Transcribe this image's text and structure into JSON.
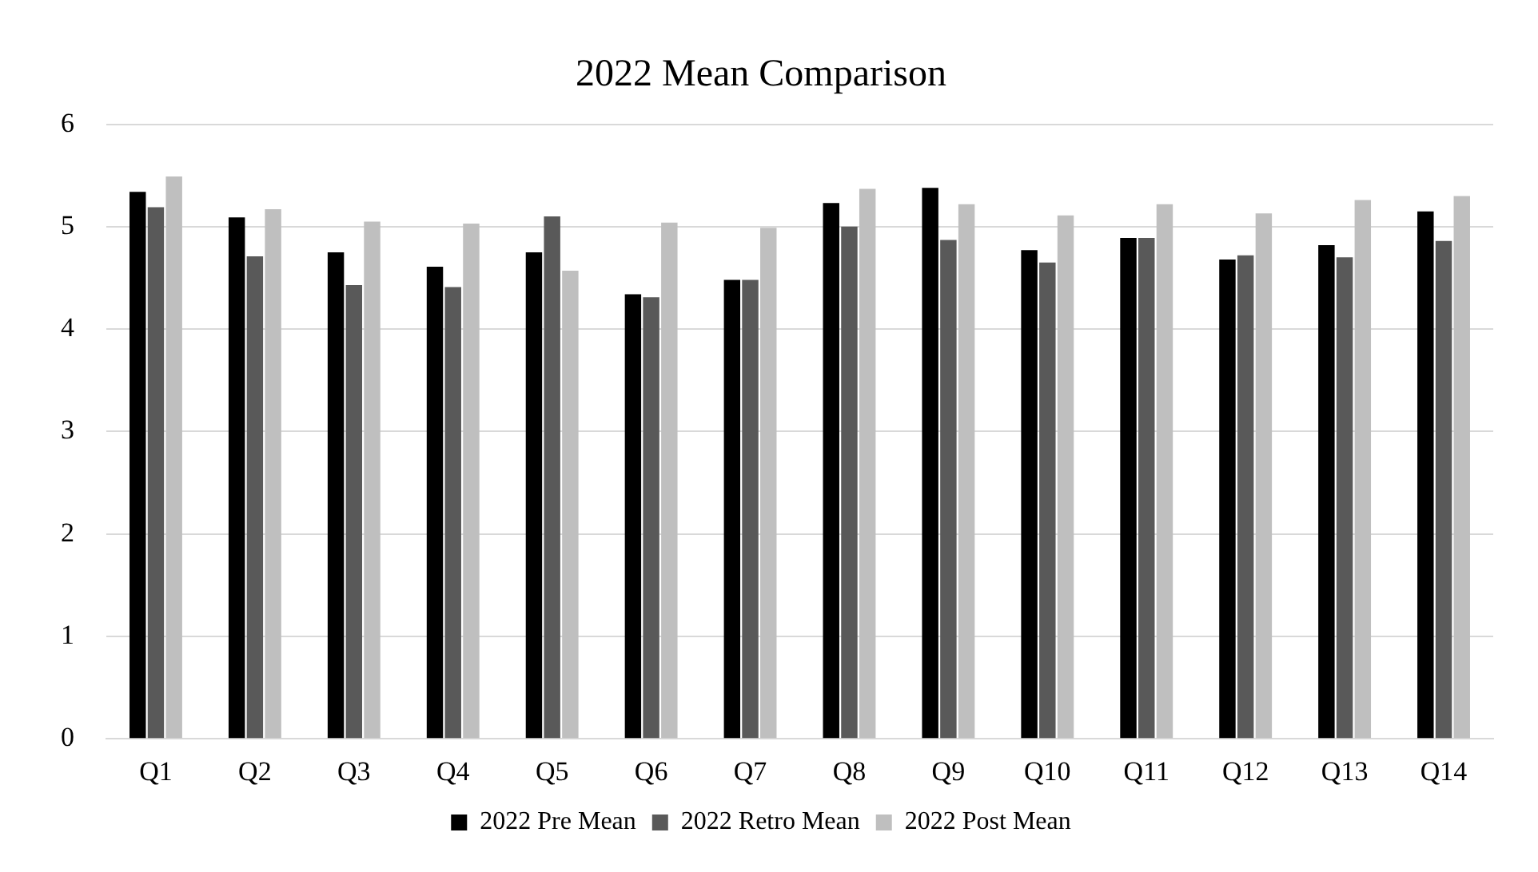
{
  "chart_data": {
    "type": "bar",
    "title": "2022 Mean Comparison",
    "categories": [
      "Q1",
      "Q2",
      "Q3",
      "Q4",
      "Q5",
      "Q6",
      "Q7",
      "Q8",
      "Q9",
      "Q10",
      "Q11",
      "Q12",
      "Q13",
      "Q14"
    ],
    "series": [
      {
        "name": "2022 Pre Mean",
        "color": "#000000",
        "values": [
          5.34,
          5.09,
          4.75,
          4.61,
          4.75,
          4.34,
          4.48,
          5.23,
          5.38,
          4.77,
          4.89,
          4.68,
          4.82,
          5.15
        ]
      },
      {
        "name": "2022 Retro Mean",
        "color": "#595959",
        "values": [
          5.19,
          4.71,
          4.43,
          4.41,
          5.1,
          4.31,
          4.48,
          5.0,
          4.87,
          4.65,
          4.89,
          4.72,
          4.7,
          4.86
        ]
      },
      {
        "name": "2022 Post Mean",
        "color": "#bfbfbf",
        "values": [
          5.49,
          5.17,
          5.05,
          5.03,
          4.57,
          5.04,
          4.99,
          5.37,
          5.22,
          5.11,
          5.22,
          5.13,
          5.26,
          5.3
        ]
      }
    ],
    "ylim": [
      0,
      6
    ],
    "yticks": [
      0,
      1,
      2,
      3,
      4,
      5,
      6
    ],
    "grid": "y",
    "legend": "bottom"
  }
}
